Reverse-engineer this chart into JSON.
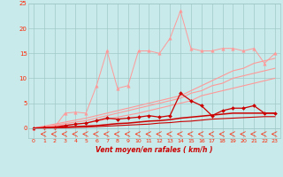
{
  "x": [
    0,
    1,
    2,
    3,
    4,
    5,
    6,
    7,
    8,
    9,
    10,
    11,
    12,
    13,
    14,
    15,
    16,
    17,
    18,
    19,
    20,
    21,
    22,
    23
  ],
  "line_pink_marker": [
    0,
    0.1,
    0.2,
    3.0,
    3.2,
    3.0,
    8.5,
    15.5,
    8.0,
    8.5,
    15.5,
    15.5,
    15.0,
    18.0,
    23.5,
    16.0,
    15.5,
    15.5,
    16.0,
    16.0,
    15.5,
    16.0,
    13.0,
    15.0
  ],
  "line_pink_straight1": [
    0,
    0.4,
    0.8,
    1.2,
    1.6,
    2.0,
    2.5,
    3.0,
    3.5,
    4.0,
    4.5,
    5.0,
    5.5,
    6.0,
    6.5,
    7.5,
    8.5,
    9.5,
    10.5,
    11.5,
    12.0,
    13.0,
    13.5,
    14.0
  ],
  "line_pink_straight2": [
    0,
    0.3,
    0.6,
    0.9,
    1.2,
    1.5,
    2.0,
    2.5,
    3.0,
    3.5,
    4.0,
    4.5,
    5.0,
    5.5,
    6.0,
    7.0,
    7.5,
    8.5,
    9.0,
    10.0,
    10.5,
    11.0,
    11.5,
    12.0
  ],
  "line_pink_straight3": [
    0,
    0.2,
    0.4,
    0.6,
    0.8,
    1.0,
    1.4,
    1.8,
    2.2,
    2.6,
    3.0,
    3.5,
    4.0,
    4.5,
    5.0,
    5.5,
    6.5,
    7.0,
    7.5,
    8.0,
    8.5,
    9.0,
    9.5,
    10.0
  ],
  "line_red_marker": [
    0,
    0.1,
    0.2,
    0.5,
    0.8,
    1.0,
    1.5,
    2.0,
    1.8,
    2.0,
    2.2,
    2.5,
    2.2,
    2.5,
    7.0,
    5.5,
    4.5,
    2.5,
    3.5,
    4.0,
    4.0,
    4.5,
    3.0,
    3.0
  ],
  "line_dark_straight1": [
    0,
    0.05,
    0.1,
    0.2,
    0.3,
    0.4,
    0.5,
    0.7,
    0.9,
    1.0,
    1.2,
    1.4,
    1.5,
    1.7,
    2.0,
    2.2,
    2.4,
    2.6,
    2.8,
    3.0,
    3.0,
    3.0,
    3.0,
    3.0
  ],
  "line_dark_straight2": [
    0,
    0.02,
    0.05,
    0.1,
    0.15,
    0.2,
    0.3,
    0.4,
    0.5,
    0.6,
    0.7,
    0.8,
    1.0,
    1.1,
    1.3,
    1.4,
    1.6,
    1.8,
    1.9,
    2.0,
    2.1,
    2.2,
    2.3,
    2.3
  ],
  "ylim_top": 25,
  "xlabel": "Vent moyen/en rafales ( km/h )",
  "xticks": [
    0,
    1,
    2,
    3,
    4,
    5,
    6,
    7,
    8,
    9,
    10,
    11,
    12,
    13,
    14,
    15,
    16,
    17,
    18,
    19,
    20,
    21,
    22,
    23
  ],
  "yticks": [
    0,
    5,
    10,
    15,
    20,
    25
  ],
  "bg_color": "#c8eaea",
  "grid_color": "#a0c8c8",
  "light_pink": "#ff9999",
  "dark_red": "#cc0000",
  "red": "#ff2200",
  "xlabel_color": "#cc0000"
}
